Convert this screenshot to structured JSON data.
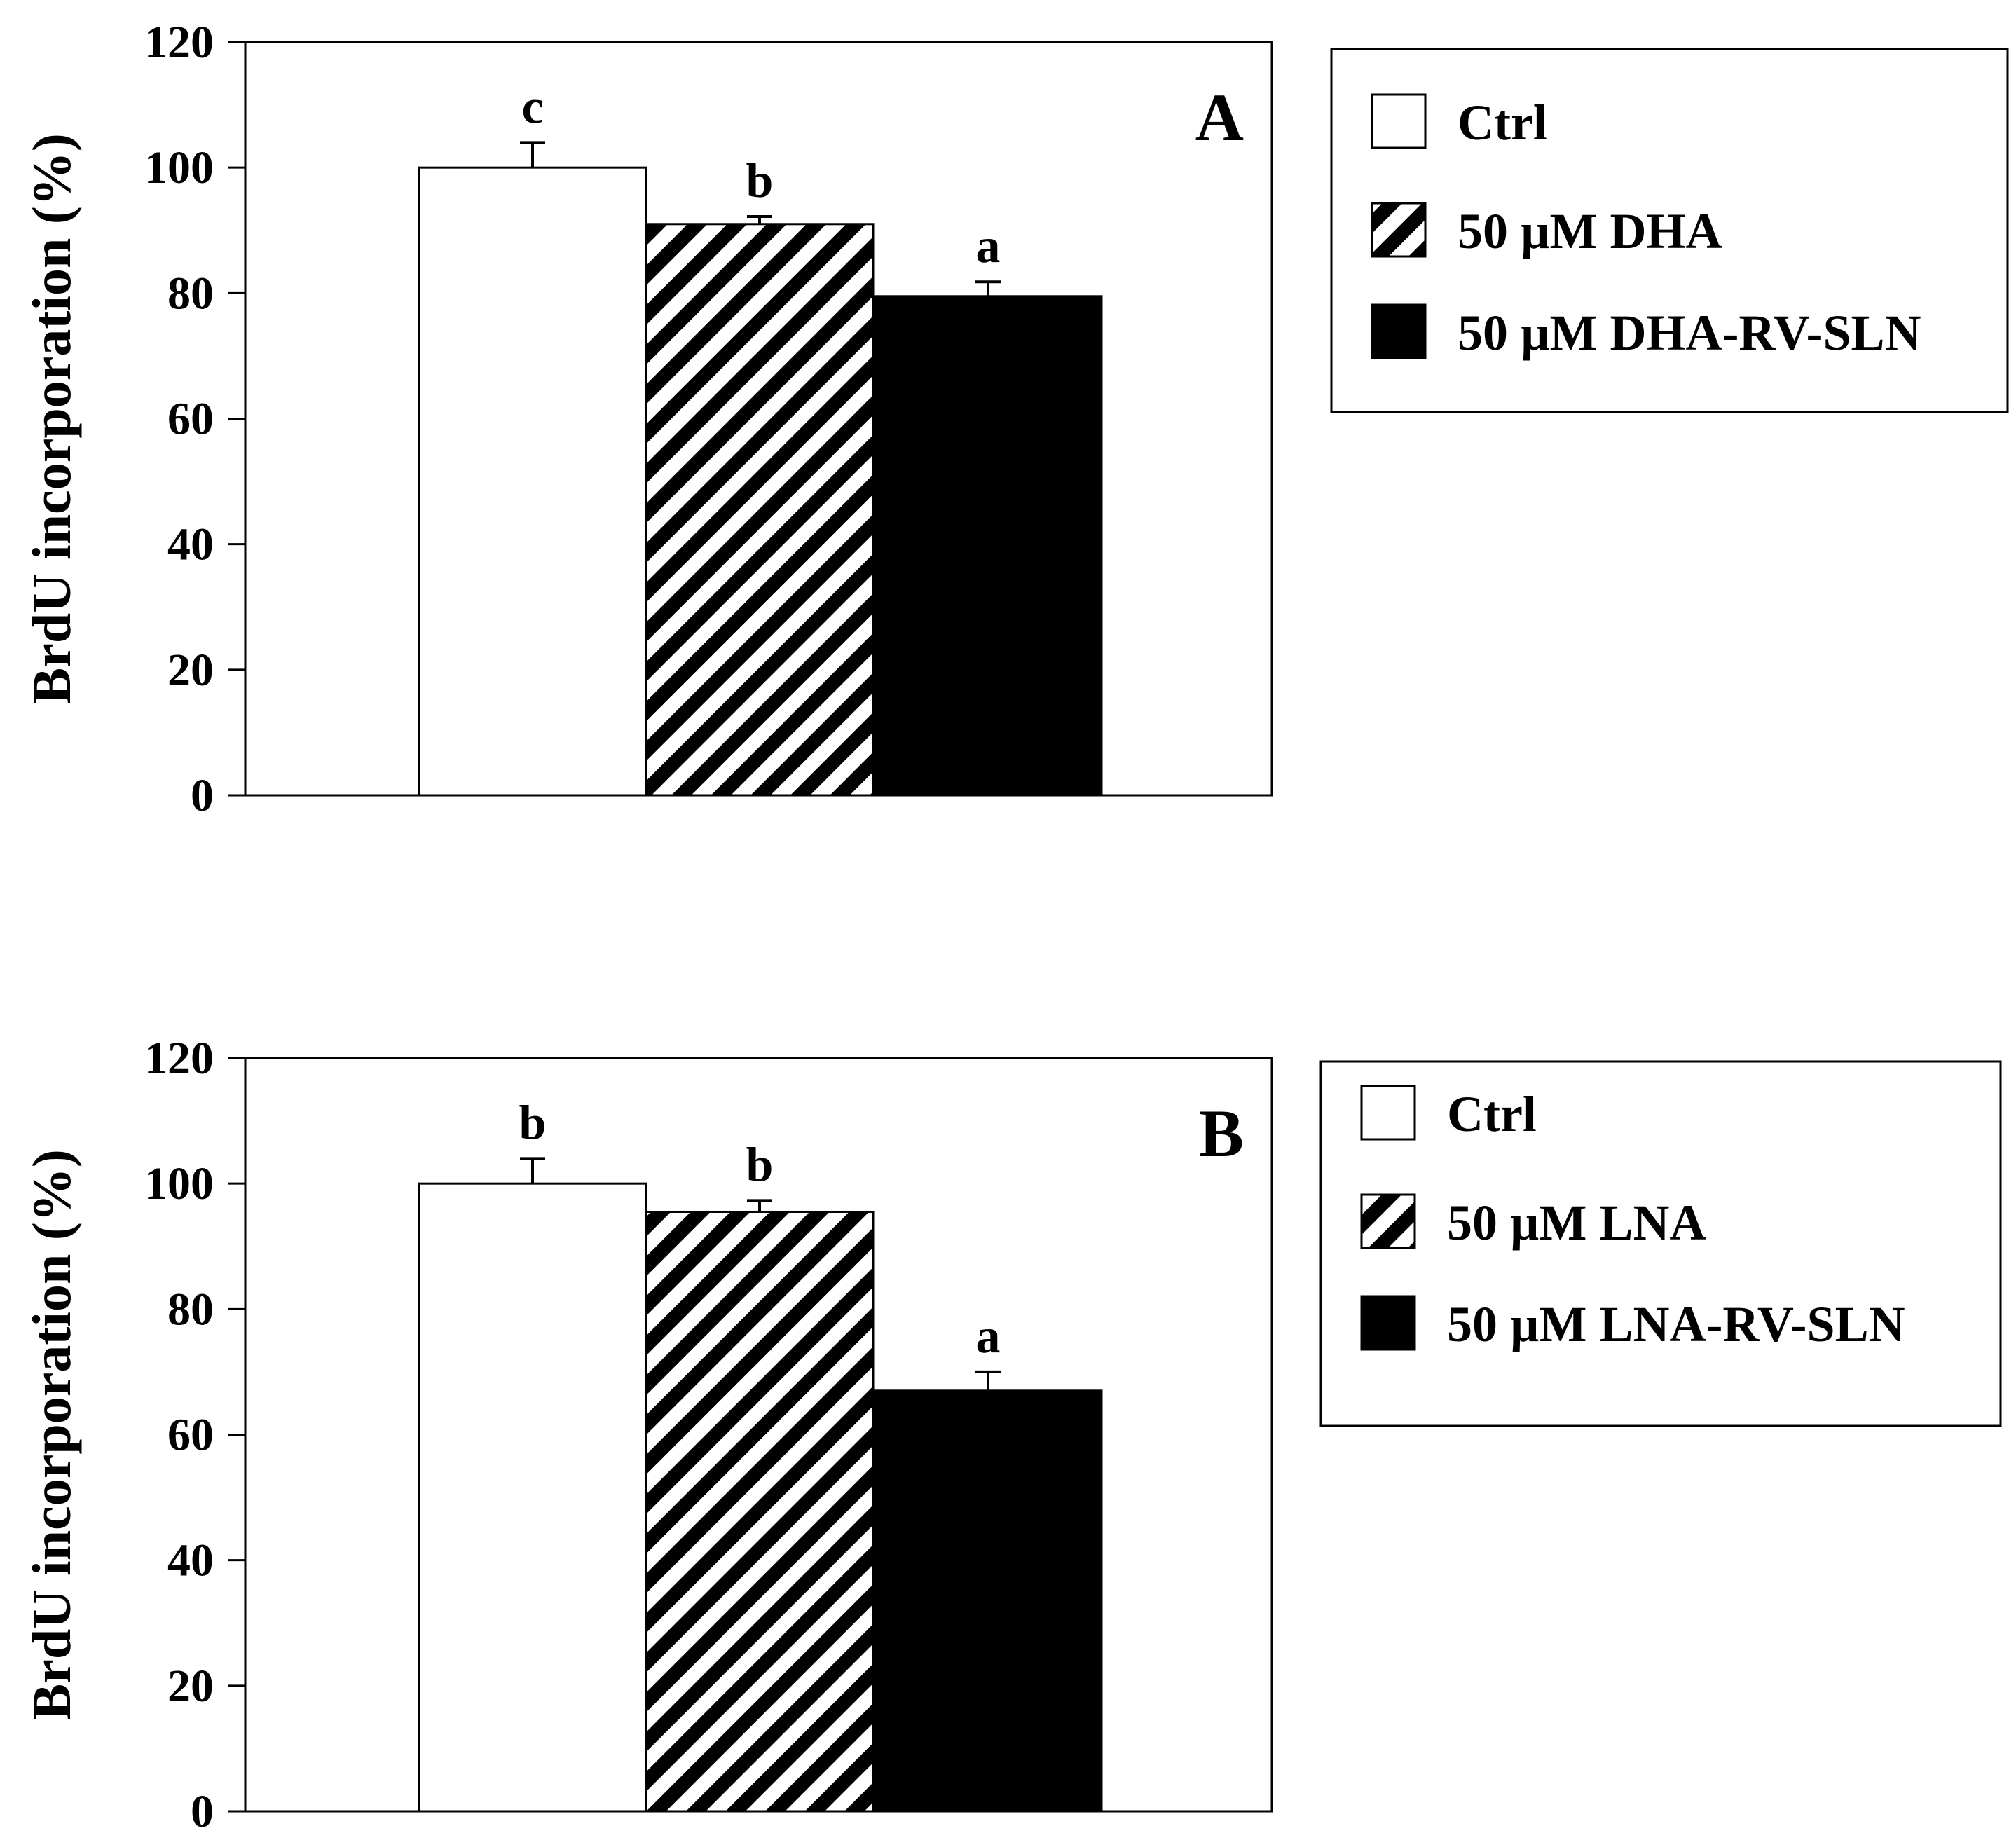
{
  "chart_data": [
    {
      "type": "bar",
      "panel_label": "A",
      "ylabel": "BrdU incorporation (%)",
      "ylim": [
        0,
        120
      ],
      "yticks": [
        0,
        20,
        40,
        60,
        80,
        100,
        120
      ],
      "grid": false,
      "legend_position": "right",
      "series": [
        {
          "name": "Ctrl",
          "value": 100,
          "error": 4,
          "significance": "c",
          "pattern": "empty"
        },
        {
          "name": "50 µM DHA",
          "value": 91,
          "error": 1.2,
          "significance": "b",
          "pattern": "hatched"
        },
        {
          "name": "50 µM DHA-RV-SLN",
          "value": 79.5,
          "error": 2.3,
          "significance": "a",
          "pattern": "solid"
        }
      ]
    },
    {
      "type": "bar",
      "panel_label": "B",
      "ylabel": "BrdU incorporation (%)",
      "ylim": [
        0,
        120
      ],
      "yticks": [
        0,
        20,
        40,
        60,
        80,
        100,
        120
      ],
      "grid": false,
      "legend_position": "right",
      "series": [
        {
          "name": "Ctrl",
          "value": 100,
          "error": 4,
          "significance": "b",
          "pattern": "empty"
        },
        {
          "name": "50 µM LNA",
          "value": 95.5,
          "error": 1.8,
          "significance": "b",
          "pattern": "hatched"
        },
        {
          "name": "50 µM LNA-RV-SLN",
          "value": 67,
          "error": 3,
          "significance": "a",
          "pattern": "solid"
        }
      ]
    }
  ]
}
